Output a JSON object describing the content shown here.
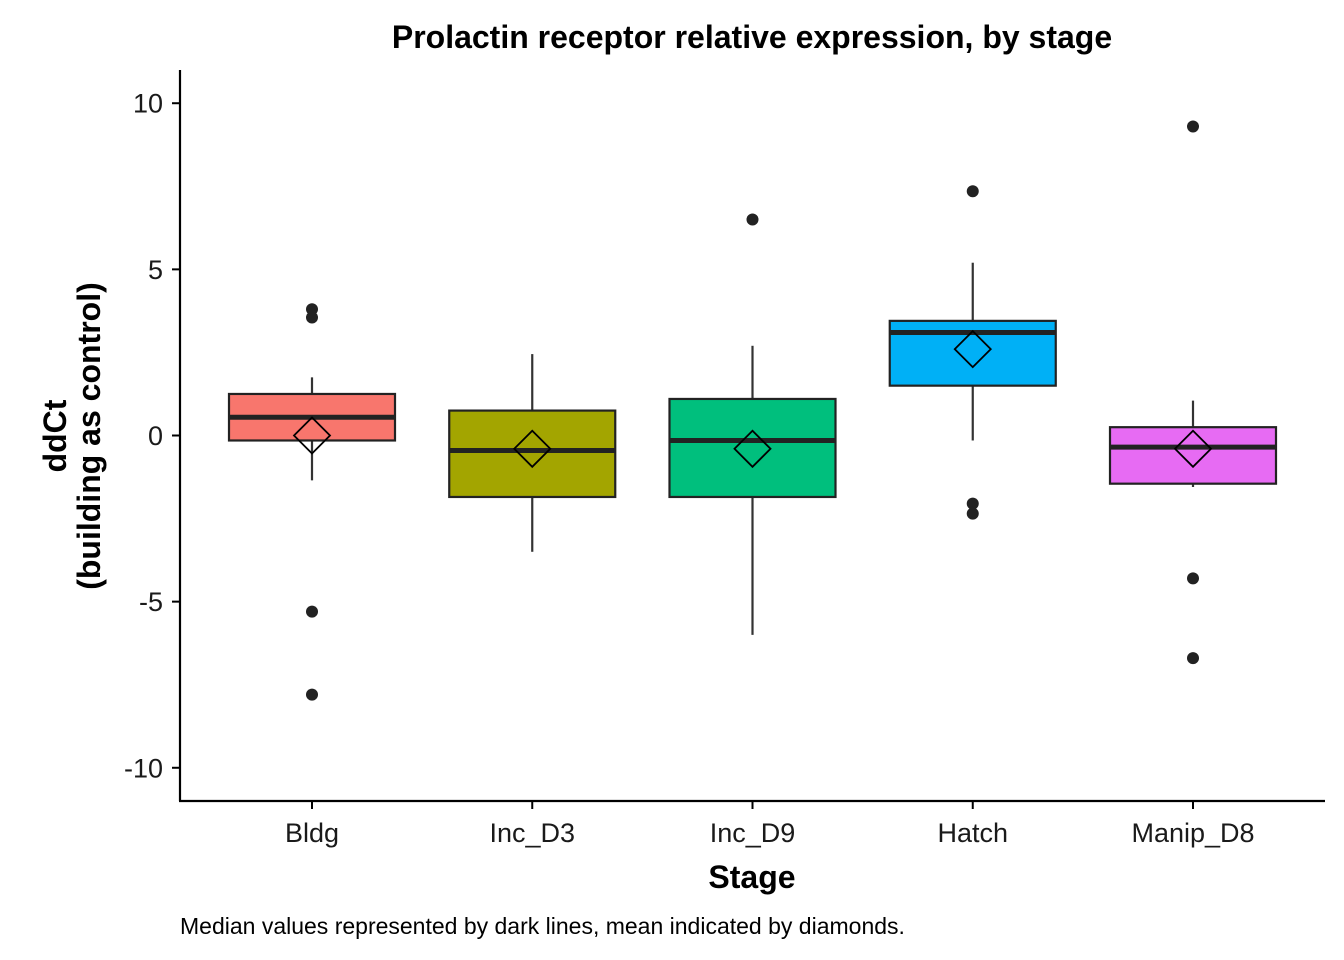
{
  "chart_data": {
    "type": "box",
    "title": "Prolactin receptor relative expression, by stage",
    "xlabel": "Stage",
    "ylabel_lines": [
      "ddCt",
      "(building as control)"
    ],
    "caption": "Median values represented by dark lines, mean indicated by diamonds.",
    "ylim": [
      -11,
      11
    ],
    "yticks": [
      -10,
      -5,
      0,
      5,
      10
    ],
    "ytick_labels": [
      "-10",
      "-5",
      "0",
      "5",
      "10"
    ],
    "grid": false,
    "legend": "none",
    "categories": [
      "Bldg",
      "Inc_D3",
      "Inc_D9",
      "Hatch",
      "Manip_D8"
    ],
    "boxes": [
      {
        "stage": "Bldg",
        "color": "#F8766D",
        "q1": -0.15,
        "median": 0.55,
        "q3": 1.25,
        "whisker_low": -1.35,
        "whisker_high": 1.75,
        "mean": 0.0,
        "outliers": [
          3.8,
          3.55,
          -5.3,
          -7.8
        ]
      },
      {
        "stage": "Inc_D3",
        "color": "#A3A500",
        "q1": -1.85,
        "median": -0.45,
        "q3": 0.75,
        "whisker_low": -3.5,
        "whisker_high": 2.45,
        "mean": -0.4,
        "outliers": []
      },
      {
        "stage": "Inc_D9",
        "color": "#00BF7D",
        "q1": -1.85,
        "median": -0.15,
        "q3": 1.1,
        "whisker_low": -6.0,
        "whisker_high": 2.7,
        "mean": -0.4,
        "outliers": [
          6.5
        ]
      },
      {
        "stage": "Hatch",
        "color": "#00B0F6",
        "q1": 1.5,
        "median": 3.1,
        "q3": 3.45,
        "whisker_low": -0.15,
        "whisker_high": 5.2,
        "mean": 2.6,
        "outliers": [
          7.35,
          -2.05,
          -2.35
        ]
      },
      {
        "stage": "Manip_D8",
        "color": "#E76BF3",
        "q1": -1.45,
        "median": -0.35,
        "q3": 0.25,
        "whisker_low": -1.55,
        "whisker_high": 1.05,
        "mean": -0.4,
        "outliers": [
          9.3,
          -4.3,
          -6.7
        ]
      }
    ]
  }
}
